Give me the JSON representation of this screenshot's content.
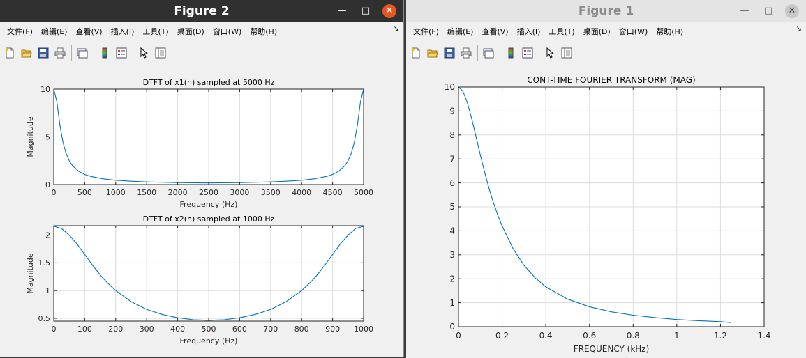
{
  "figure2": {
    "title": "Figure 2",
    "menus": [
      "文件(F)",
      "编辑(E)",
      "查看(V)",
      "插入(I)",
      "工具(T)",
      "桌面(D)",
      "窗口(W)",
      "帮助(H)"
    ]
  },
  "figure1": {
    "title": "Figure 1",
    "menus": [
      "文件(F)",
      "编辑(E)",
      "查看(V)",
      "插入(I)",
      "工具(T)",
      "桌面(D)",
      "窗口(W)",
      "帮助(H)"
    ]
  },
  "chart_data": [
    {
      "type": "line",
      "title": "DTFT of x1(n) sampled at 5000 Hz",
      "xlabel": "Frequency (Hz)",
      "ylabel": "Magnitude",
      "xlim": [
        0,
        5000
      ],
      "ylim": [
        0,
        10
      ],
      "xticks": [
        0,
        500,
        1000,
        1500,
        2000,
        2500,
        3000,
        3500,
        4000,
        4500,
        5000
      ],
      "yticks": [
        0,
        5,
        10
      ],
      "grid": true,
      "series": [
        {
          "color": "#0072bd",
          "x": [
            0,
            50,
            100,
            150,
            200,
            250,
            300,
            400,
            500,
            600,
            800,
            1000,
            1250,
            1500,
            2000,
            2500,
            3000,
            3500,
            3750,
            4000,
            4200,
            4400,
            4500,
            4600,
            4700,
            4750,
            4800,
            4850,
            4900,
            4950,
            5000
          ],
          "y": [
            10,
            8.7,
            6.2,
            4.4,
            3.25,
            2.5,
            2.0,
            1.4,
            1.06,
            0.85,
            0.6,
            0.45,
            0.35,
            0.28,
            0.2,
            0.17,
            0.2,
            0.28,
            0.35,
            0.45,
            0.6,
            0.85,
            1.06,
            1.4,
            2.0,
            2.5,
            3.25,
            4.4,
            6.2,
            8.7,
            10
          ]
        }
      ]
    },
    {
      "type": "line",
      "title": "DTFT of x2(n) sampled at 1000 Hz",
      "xlabel": "Frequency (Hz)",
      "ylabel": "Magnitude",
      "xlim": [
        0,
        1000
      ],
      "ylim": [
        0.45,
        2.17
      ],
      "xticks": [
        0,
        100,
        200,
        300,
        400,
        500,
        600,
        700,
        800,
        900,
        1000
      ],
      "yticks": [
        0.5,
        1,
        1.5,
        2
      ],
      "ytick_labels": [
        "0.5",
        "1",
        "1.5",
        "2"
      ],
      "grid": true,
      "series": [
        {
          "color": "#0072bd",
          "x": [
            0,
            25,
            50,
            75,
            100,
            125,
            150,
            175,
            200,
            250,
            300,
            350,
            400,
            450,
            500,
            550,
            600,
            650,
            700,
            750,
            800,
            825,
            850,
            875,
            900,
            925,
            950,
            975,
            1000
          ],
          "y": [
            2.16,
            2.12,
            2.0,
            1.84,
            1.65,
            1.46,
            1.28,
            1.13,
            1.0,
            0.8,
            0.66,
            0.57,
            0.51,
            0.475,
            0.465,
            0.475,
            0.51,
            0.57,
            0.66,
            0.8,
            1.0,
            1.13,
            1.28,
            1.46,
            1.65,
            1.84,
            2.0,
            2.12,
            2.16
          ]
        }
      ]
    },
    {
      "type": "line",
      "title": "CONT-TIME FOURIER TRANSFORM (MAG)",
      "xlabel": "FREQUENCY (kHz)",
      "ylabel": "",
      "xlim": [
        0,
        1.4
      ],
      "ylim": [
        0,
        10
      ],
      "xticks": [
        0,
        0.2,
        0.4,
        0.6,
        0.8,
        1,
        1.2,
        1.4
      ],
      "xtick_labels": [
        "0",
        "0.2",
        "0.4",
        "0.6",
        "0.8",
        "1",
        "1.2",
        "1.4"
      ],
      "yticks": [
        0,
        1,
        2,
        3,
        4,
        5,
        6,
        7,
        8,
        9,
        10
      ],
      "grid": true,
      "series": [
        {
          "color": "#0072bd",
          "x": [
            0,
            0.02,
            0.04,
            0.06,
            0.08,
            0.1,
            0.12,
            0.14,
            0.16,
            0.18,
            0.2,
            0.25,
            0.3,
            0.35,
            0.4,
            0.5,
            0.6,
            0.7,
            0.8,
            0.9,
            1.0,
            1.1,
            1.2,
            1.25
          ],
          "y": [
            10,
            9.83,
            9.37,
            8.7,
            7.95,
            7.17,
            6.44,
            5.77,
            5.18,
            4.66,
            4.2,
            3.26,
            2.56,
            2.05,
            1.66,
            1.15,
            0.83,
            0.62,
            0.48,
            0.38,
            0.3,
            0.25,
            0.21,
            0.17
          ]
        }
      ]
    }
  ]
}
